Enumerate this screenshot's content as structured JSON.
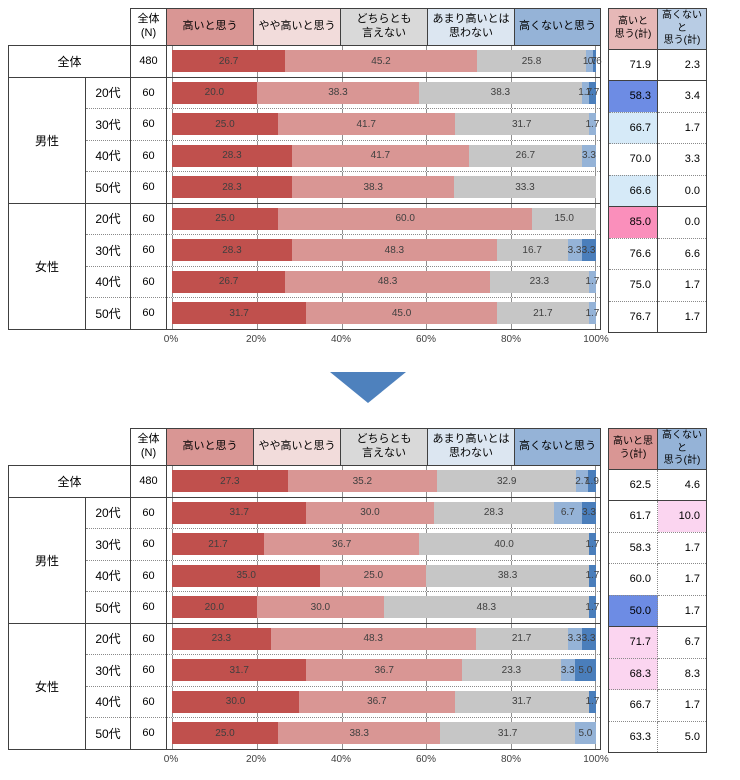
{
  "axis_ticks": [
    "0%",
    "20%",
    "40%",
    "60%",
    "80%",
    "100%"
  ],
  "colors": {
    "series": [
      "#C0504D",
      "#D99694",
      "#C6C6C6",
      "#95B3D7",
      "#4A7EBB"
    ],
    "segment_header_bg": [
      "#D99694",
      "#F2DCDB",
      "#D9D9D9",
      "#DCE6F1",
      "#95B3D7"
    ],
    "total_header_bg": [
      [
        "#E6B8B7",
        "#B8CCE4"
      ],
      [
        "#D99694",
        "#95B3D7"
      ]
    ],
    "highlight": {
      "blue": "#6D8CE4",
      "light_blue": "#D6EAF8",
      "pink": "#FA8FBB",
      "light_pink": "#FBD5F0"
    },
    "arrow": "#4E81BD"
  },
  "chart_data": [
    {
      "type": "bar",
      "stacked": true,
      "orientation": "horizontal",
      "xlim": [
        0,
        100
      ],
      "n_header_lines": [
        "全体",
        "(N)"
      ],
      "segment_header_lines": [
        [
          "高いと思う"
        ],
        [
          "やや高いと思う"
        ],
        [
          "どちらとも",
          "言えない"
        ],
        [
          "あまり高いとは",
          "思わない"
        ],
        [
          "高くないと思う"
        ]
      ],
      "series_names": [
        "高いと思う",
        "やや高いと思う",
        "どちらとも言えない",
        "あまり高いとは思わない",
        "高くないと思う"
      ],
      "total_header_lines": [
        [
          "高いと",
          "思う(計)"
        ],
        [
          "高くないと",
          "思う(計)"
        ]
      ],
      "rows": [
        {
          "group": "全体",
          "age": "",
          "n": 480,
          "values": [
            26.7,
            45.2,
            25.8,
            1.7,
            0.6
          ],
          "labels": [
            "26.7",
            "45.2",
            "25.8",
            "1.7",
            "0.6"
          ],
          "high_total": "71.9",
          "low_total": "2.3",
          "high_hl": null,
          "low_hl": null
        },
        {
          "group": "男性",
          "age": "20代",
          "n": 60,
          "values": [
            20.0,
            38.3,
            38.3,
            1.7,
            1.7
          ],
          "labels": [
            "20.0",
            "38.3",
            "38.3",
            "1.7",
            "1.7"
          ],
          "high_total": "58.3",
          "low_total": "3.4",
          "high_hl": "blue",
          "low_hl": null
        },
        {
          "age": "30代",
          "n": 60,
          "values": [
            25.0,
            41.7,
            31.7,
            1.7,
            0
          ],
          "labels": [
            "25.0",
            "41.7",
            "31.7",
            "1.7",
            ""
          ],
          "high_total": "66.7",
          "low_total": "1.7",
          "high_hl": "light_blue",
          "low_hl": null
        },
        {
          "age": "40代",
          "n": 60,
          "values": [
            28.3,
            41.7,
            26.7,
            3.3,
            0
          ],
          "labels": [
            "28.3",
            "41.7",
            "26.7",
            "3.3",
            ""
          ],
          "high_total": "70.0",
          "low_total": "3.3",
          "high_hl": null,
          "low_hl": null
        },
        {
          "age": "50代",
          "n": 60,
          "values": [
            28.3,
            38.3,
            33.3,
            0,
            0
          ],
          "labels": [
            "28.3",
            "38.3",
            "33.3",
            "",
            ""
          ],
          "high_total": "66.6",
          "low_total": "0.0",
          "high_hl": "light_blue",
          "low_hl": null
        },
        {
          "group": "女性",
          "age": "20代",
          "n": 60,
          "values": [
            25.0,
            60.0,
            15.0,
            0,
            0
          ],
          "labels": [
            "25.0",
            "60.0",
            "15.0",
            "",
            ""
          ],
          "high_total": "85.0",
          "low_total": "0.0",
          "high_hl": "pink",
          "low_hl": null
        },
        {
          "age": "30代",
          "n": 60,
          "values": [
            28.3,
            48.3,
            16.7,
            3.3,
            3.3
          ],
          "labels": [
            "28.3",
            "48.3",
            "16.7",
            "3.3",
            "3.3"
          ],
          "high_total": "76.6",
          "low_total": "6.6",
          "high_hl": null,
          "low_hl": null
        },
        {
          "age": "40代",
          "n": 60,
          "values": [
            26.7,
            48.3,
            23.3,
            1.7,
            0
          ],
          "labels": [
            "26.7",
            "48.3",
            "23.3",
            "1.7",
            ""
          ],
          "high_total": "75.0",
          "low_total": "1.7",
          "high_hl": null,
          "low_hl": null
        },
        {
          "age": "50代",
          "n": 60,
          "values": [
            31.7,
            45.0,
            21.7,
            1.7,
            0
          ],
          "labels": [
            "31.7",
            "45.0",
            "21.7",
            "1.7",
            ""
          ],
          "high_total": "76.7",
          "low_total": "1.7",
          "high_hl": null,
          "low_hl": null
        }
      ]
    },
    {
      "type": "bar",
      "stacked": true,
      "orientation": "horizontal",
      "xlim": [
        0,
        100
      ],
      "n_header_lines": [
        "全体",
        "(N)"
      ],
      "segment_header_lines": [
        [
          "高いと思う"
        ],
        [
          "やや高いと思う"
        ],
        [
          "どちらとも",
          "言えない"
        ],
        [
          "あまり高いとは",
          "思わない"
        ],
        [
          "高くないと思う"
        ]
      ],
      "series_names": [
        "高いと思う",
        "やや高いと思う",
        "どちらとも言えない",
        "あまり高いとは思わない",
        "高くないと思う"
      ],
      "total_header_lines": [
        [
          "高いと思",
          "う(計)"
        ],
        [
          "高くないと",
          "思う(計)"
        ]
      ],
      "rows": [
        {
          "group": "全体",
          "age": "",
          "n": 480,
          "values": [
            27.3,
            35.2,
            32.9,
            2.7,
            1.9
          ],
          "labels": [
            "27.3",
            "35.2",
            "32.9",
            "2.7",
            "1.9"
          ],
          "high_total": "62.5",
          "low_total": "4.6",
          "high_hl": null,
          "low_hl": null
        },
        {
          "group": "男性",
          "age": "20代",
          "n": 60,
          "values": [
            31.7,
            30.0,
            28.3,
            6.7,
            3.3
          ],
          "labels": [
            "31.7",
            "30.0",
            "28.3",
            "6.7",
            "3.3"
          ],
          "high_total": "61.7",
          "low_total": "10.0",
          "high_hl": null,
          "low_hl": "light_pink"
        },
        {
          "age": "30代",
          "n": 60,
          "values": [
            21.7,
            36.7,
            40.0,
            0,
            1.7
          ],
          "labels": [
            "21.7",
            "36.7",
            "40.0",
            "",
            "1.7"
          ],
          "high_total": "58.3",
          "low_total": "1.7",
          "high_hl": null,
          "low_hl": null
        },
        {
          "age": "40代",
          "n": 60,
          "values": [
            35.0,
            25.0,
            38.3,
            0,
            1.7
          ],
          "labels": [
            "35.0",
            "25.0",
            "38.3",
            "",
            "1.7"
          ],
          "high_total": "60.0",
          "low_total": "1.7",
          "high_hl": null,
          "low_hl": null
        },
        {
          "age": "50代",
          "n": 60,
          "values": [
            20.0,
            30.0,
            48.3,
            0,
            1.7
          ],
          "labels": [
            "20.0",
            "30.0",
            "48.3",
            "",
            "1.7"
          ],
          "high_total": "50.0",
          "low_total": "1.7",
          "high_hl": "blue",
          "low_hl": null
        },
        {
          "group": "女性",
          "age": "20代",
          "n": 60,
          "values": [
            23.3,
            48.3,
            21.7,
            3.3,
            3.3
          ],
          "labels": [
            "23.3",
            "48.3",
            "21.7",
            "3.3",
            "3.3"
          ],
          "high_total": "71.7",
          "low_total": "6.7",
          "high_hl": "light_pink",
          "low_hl": null
        },
        {
          "age": "30代",
          "n": 60,
          "values": [
            31.7,
            36.7,
            23.3,
            3.3,
            5.0
          ],
          "labels": [
            "31.7",
            "36.7",
            "23.3",
            "3.3",
            "5.0"
          ],
          "high_total": "68.3",
          "low_total": "8.3",
          "high_hl": "light_pink",
          "low_hl": null
        },
        {
          "age": "40代",
          "n": 60,
          "values": [
            30.0,
            36.7,
            31.7,
            0,
            1.7
          ],
          "labels": [
            "30.0",
            "36.7",
            "31.7",
            "",
            "1.7"
          ],
          "high_total": "66.7",
          "low_total": "1.7",
          "high_hl": null,
          "low_hl": null
        },
        {
          "age": "50代",
          "n": 60,
          "values": [
            25.0,
            38.3,
            31.7,
            5.0,
            0
          ],
          "labels": [
            "25.0",
            "38.3",
            "31.7",
            "5.0",
            ""
          ],
          "high_total": "63.3",
          "low_total": "5.0",
          "high_hl": null,
          "low_hl": null
        }
      ]
    }
  ]
}
